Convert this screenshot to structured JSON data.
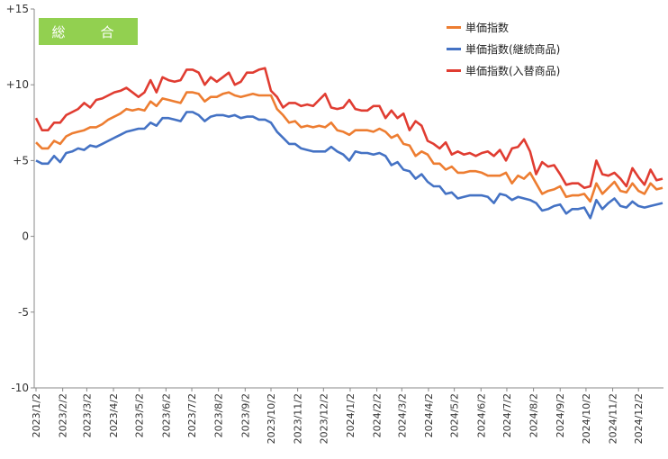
{
  "chart_data": {
    "type": "line",
    "title": "総　合",
    "xlabel": "",
    "ylabel": "",
    "ylim": [
      -10,
      15
    ],
    "yticks": [
      "-10",
      "-5",
      "0",
      "+5",
      "+10",
      "+15"
    ],
    "ytick_values": [
      -10,
      -5,
      0,
      5,
      10,
      15
    ],
    "grid": false,
    "legend_position": "top-right",
    "x_tick_labels": [
      "2023/1/2",
      "2023/2/2",
      "2023/3/2",
      "2023/4/2",
      "2023/5/2",
      "2023/6/2",
      "2023/7/2",
      "2023/8/2",
      "2023/9/2",
      "2023/10/2",
      "2023/11/2",
      "2023/12/2",
      "2024/1/2",
      "2024/2/2",
      "2024/3/2",
      "2024/4/2",
      "2024/5/2",
      "2024/6/2",
      "2024/7/2",
      "2024/8/2",
      "2024/9/2",
      "2024/10/2",
      "2024/11/2",
      "2024/12/2"
    ],
    "x_start": "2023-01-02",
    "x_step_days": 7,
    "series": [
      {
        "name": "単価指数",
        "color": "#ed7d31",
        "values": [
          6.2,
          5.8,
          5.8,
          6.3,
          6.1,
          6.6,
          6.8,
          6.9,
          7.0,
          7.2,
          7.2,
          7.4,
          7.7,
          7.9,
          8.1,
          8.4,
          8.3,
          8.4,
          8.3,
          8.9,
          8.6,
          9.1,
          9.0,
          8.9,
          8.8,
          9.5,
          9.5,
          9.4,
          8.9,
          9.2,
          9.2,
          9.4,
          9.5,
          9.3,
          9.2,
          9.3,
          9.4,
          9.3,
          9.3,
          9.3,
          8.4,
          8.0,
          7.5,
          7.6,
          7.2,
          7.3,
          7.2,
          7.3,
          7.2,
          7.5,
          7.0,
          6.9,
          6.7,
          7.0,
          7.0,
          7.0,
          6.9,
          7.1,
          6.9,
          6.5,
          6.7,
          6.1,
          6.0,
          5.3,
          5.6,
          5.4,
          4.8,
          4.8,
          4.4,
          4.6,
          4.2,
          4.2,
          4.3,
          4.3,
          4.2,
          4.0,
          4.0,
          4.0,
          4.2,
          3.5,
          4.0,
          3.8,
          4.2,
          3.5,
          2.8,
          3.0,
          3.1,
          3.3,
          2.6,
          2.7,
          2.7,
          2.8,
          2.3,
          3.5,
          2.8,
          3.2,
          3.6,
          3.0,
          2.9,
          3.5,
          3.0,
          2.8,
          3.5,
          3.1,
          3.2
        ]
      },
      {
        "name": "単価指数(継続商品)",
        "color": "#4472c4",
        "values": [
          5.0,
          4.8,
          4.8,
          5.3,
          4.9,
          5.5,
          5.6,
          5.8,
          5.7,
          6.0,
          5.9,
          6.1,
          6.3,
          6.5,
          6.7,
          6.9,
          7.0,
          7.1,
          7.1,
          7.5,
          7.3,
          7.8,
          7.8,
          7.7,
          7.6,
          8.2,
          8.2,
          8.0,
          7.6,
          7.9,
          8.0,
          8.0,
          7.9,
          8.0,
          7.8,
          7.9,
          7.9,
          7.7,
          7.7,
          7.5,
          6.9,
          6.5,
          6.1,
          6.1,
          5.8,
          5.7,
          5.6,
          5.6,
          5.6,
          5.9,
          5.6,
          5.4,
          5.0,
          5.6,
          5.5,
          5.5,
          5.4,
          5.5,
          5.3,
          4.7,
          4.9,
          4.4,
          4.3,
          3.8,
          4.1,
          3.6,
          3.3,
          3.3,
          2.8,
          2.9,
          2.5,
          2.6,
          2.7,
          2.7,
          2.7,
          2.6,
          2.2,
          2.8,
          2.7,
          2.4,
          2.6,
          2.5,
          2.4,
          2.2,
          1.7,
          1.8,
          2.0,
          2.1,
          1.5,
          1.8,
          1.8,
          1.9,
          1.2,
          2.4,
          1.8,
          2.2,
          2.5,
          2.0,
          1.9,
          2.3,
          2.0,
          1.9,
          2.0,
          2.1,
          2.2
        ]
      },
      {
        "name": "単価指数(入替商品)",
        "color": "#e03c31",
        "values": [
          7.8,
          7.0,
          7.0,
          7.5,
          7.5,
          8.0,
          8.2,
          8.4,
          8.8,
          8.5,
          9.0,
          9.1,
          9.3,
          9.5,
          9.6,
          9.8,
          9.5,
          9.2,
          9.5,
          10.3,
          9.5,
          10.5,
          10.3,
          10.2,
          10.3,
          11.0,
          11.0,
          10.8,
          10.0,
          10.5,
          10.2,
          10.5,
          10.8,
          10.0,
          10.2,
          10.8,
          10.8,
          11.0,
          11.1,
          9.6,
          9.2,
          8.5,
          8.8,
          8.8,
          8.6,
          8.7,
          8.6,
          9.0,
          9.4,
          8.5,
          8.4,
          8.5,
          9.0,
          8.4,
          8.3,
          8.3,
          8.6,
          8.6,
          7.8,
          8.3,
          7.8,
          8.1,
          7.0,
          7.6,
          7.3,
          6.3,
          6.1,
          5.8,
          6.2,
          5.4,
          5.6,
          5.4,
          5.5,
          5.3,
          5.5,
          5.6,
          5.3,
          5.7,
          5.0,
          5.8,
          5.9,
          6.4,
          5.6,
          4.1,
          4.9,
          4.6,
          4.7,
          4.1,
          3.4,
          3.5,
          3.5,
          3.2,
          3.3,
          5.0,
          4.1,
          4.0,
          4.2,
          3.8,
          3.3,
          4.5,
          3.9,
          3.4,
          4.4,
          3.7,
          3.8
        ]
      }
    ]
  }
}
